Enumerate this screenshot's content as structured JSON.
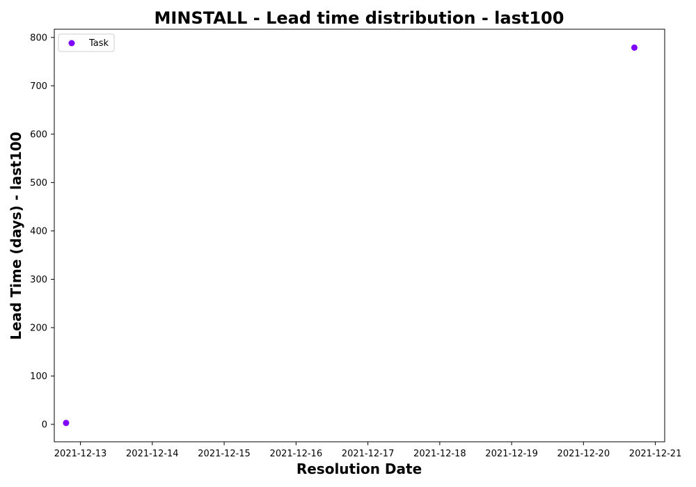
{
  "chart_data": {
    "type": "scatter",
    "title": "MINSTALL - Lead time distribution - last100",
    "xlabel": "Resolution Date",
    "ylabel": "Lead Time (days) - last100",
    "x_ticks": [
      "2021-12-13",
      "2021-12-14",
      "2021-12-15",
      "2021-12-16",
      "2021-12-17",
      "2021-12-18",
      "2021-12-19",
      "2021-12-20",
      "2021-12-21"
    ],
    "y_ticks": [
      0,
      100,
      200,
      300,
      400,
      500,
      600,
      700,
      800
    ],
    "xlim": [
      "2021-12-12 15:16",
      "2021-12-21 03:07"
    ],
    "ylim": [
      -36,
      817
    ],
    "grid": false,
    "legend_position": "top-left",
    "series": [
      {
        "name": "Task",
        "color": "#7f00ff",
        "points": [
          {
            "x": "2021-12-12 19:12",
            "y": 3
          },
          {
            "x": "2021-12-20 17:00",
            "y": 779
          }
        ]
      }
    ]
  }
}
